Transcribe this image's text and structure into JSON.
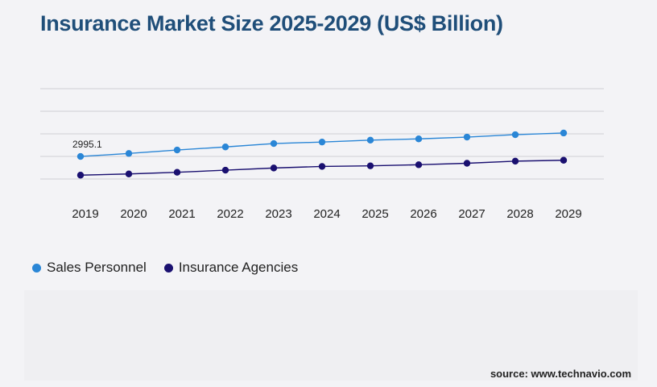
{
  "title": "Insurance Market Size 2025-2029 (US$ Billion)",
  "source": "source: www.technavio.com",
  "colors": {
    "sales_personnel": "#2a86d6",
    "insurance_agencies": "#1a1070",
    "grid": "#cfcfd4"
  },
  "chart_data": {
    "type": "line",
    "x": [
      "2019",
      "2020",
      "2021",
      "2022",
      "2023",
      "2024",
      "2025",
      "2026",
      "2027",
      "2028",
      "2029"
    ],
    "ylim": [
      0,
      7500
    ],
    "y_gridlines": [
      1500,
      3000,
      4500,
      6000,
      7500
    ],
    "y_tick_labels_visible": false,
    "grid": true,
    "legend_position": "bottom-left",
    "annotations": [
      {
        "series": "Sales Personnel",
        "x": "2019",
        "label": "2995.1"
      }
    ],
    "series": [
      {
        "name": "Sales Personnel",
        "values": [
          2995.1,
          3195,
          3425,
          3630,
          3855,
          3955,
          4080,
          4165,
          4285,
          4445,
          4555
        ]
      },
      {
        "name": "Insurance Agencies",
        "values": [
          1755,
          1835,
          1945,
          2085,
          2230,
          2335,
          2375,
          2445,
          2545,
          2685,
          2745
        ]
      }
    ]
  }
}
